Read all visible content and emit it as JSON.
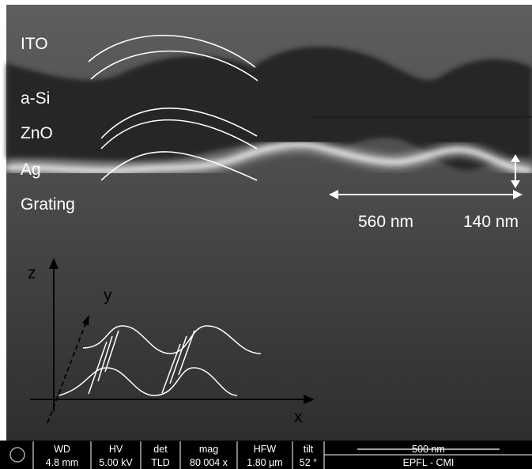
{
  "layers": [
    "ITO",
    "a-Si",
    "ZnO",
    "Ag",
    "Grating"
  ],
  "dimensions": {
    "period": "560 nm",
    "height": "140 nm"
  },
  "axes": {
    "z": "z",
    "y": "y",
    "x": "x"
  },
  "info_bar": {
    "fields": [
      {
        "label": "WD",
        "value": "4.8 mm"
      },
      {
        "label": "HV",
        "value": "5.00 kV"
      },
      {
        "label": "det",
        "value": "TLD"
      },
      {
        "label": "mag",
        "value": "80 004 x"
      },
      {
        "label": "HFW",
        "value": "1.80 µm"
      },
      {
        "label": "tilt",
        "value": "52 °"
      }
    ],
    "scale_bar": "500 nm",
    "institution": "EPFL - CMI"
  }
}
